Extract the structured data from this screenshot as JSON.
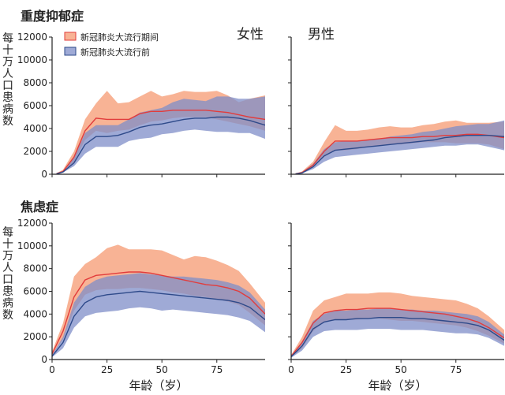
{
  "figure": {
    "row_titles": [
      "重度抑郁症",
      "焦虑症"
    ],
    "col_titles": [
      "女性",
      "男性"
    ],
    "ylabel": "每十万人口患病数",
    "xlabel": "年龄（岁）",
    "colors": {
      "during_fill": "#f7a683",
      "during_line": "#e23c3c",
      "before_fill": "#7f8dc8",
      "before_line": "#2e4a8a",
      "axis": "#222222"
    }
  },
  "chart_data": [
    {
      "type": "area",
      "title": "重度抑郁症 女性",
      "row_title": "重度抑郁症",
      "col_title": "女性",
      "xlabel": "年龄（岁）",
      "ylabel": "每十万人口患病数",
      "xlim": [
        0,
        97
      ],
      "ylim": [
        0,
        12000
      ],
      "xticks": [
        0,
        25,
        50,
        75
      ],
      "yticks": [
        0,
        2000,
        4000,
        6000,
        8000,
        10000,
        12000
      ],
      "legend": {
        "position": "top-left",
        "entries": [
          "新冠肺炎大流行期间",
          "新冠肺炎大流行前"
        ]
      },
      "x": [
        2,
        5,
        10,
        15,
        20,
        25,
        30,
        35,
        40,
        45,
        50,
        55,
        60,
        65,
        70,
        75,
        80,
        85,
        90,
        97
      ],
      "series": [
        {
          "name": "新冠肺炎大流行期间",
          "values": [
            50,
            250,
            1500,
            3800,
            4900,
            4800,
            4800,
            4800,
            5300,
            5500,
            5500,
            5600,
            5600,
            5600,
            5600,
            5500,
            5400,
            5200,
            5000,
            4800
          ],
          "lower": [
            30,
            200,
            1100,
            3000,
            3800,
            3600,
            3800,
            3900,
            4300,
            4600,
            4700,
            4900,
            5000,
            5000,
            5000,
            4800,
            4600,
            4400,
            4200,
            3800
          ],
          "upper": [
            80,
            400,
            2000,
            4800,
            6200,
            7300,
            6200,
            6300,
            6800,
            7300,
            6800,
            7000,
            7300,
            7200,
            7200,
            7300,
            6900,
            6300,
            6600,
            6900
          ]
        },
        {
          "name": "新冠肺炎大流行前",
          "values": [
            30,
            200,
            1000,
            2600,
            3300,
            3300,
            3400,
            3700,
            4100,
            4300,
            4400,
            4600,
            4800,
            4900,
            4900,
            5000,
            5000,
            4900,
            4700,
            4300
          ],
          "lower": [
            20,
            150,
            700,
            1800,
            2400,
            2400,
            2400,
            2900,
            3100,
            3200,
            3500,
            3600,
            3800,
            3900,
            3800,
            3700,
            3700,
            3600,
            3600,
            3100
          ],
          "upper": [
            50,
            300,
            1500,
            3600,
            4300,
            4300,
            4300,
            4800,
            5400,
            5600,
            5800,
            6300,
            6600,
            6500,
            6400,
            6800,
            6800,
            6600,
            6600,
            6800
          ]
        }
      ]
    },
    {
      "type": "area",
      "title": "重度抑郁症 男性",
      "row_title": "重度抑郁症",
      "col_title": "男性",
      "xlabel": "年龄（岁）",
      "ylabel": "每十万人口患病数",
      "xlim": [
        0,
        97
      ],
      "ylim": [
        0,
        12000
      ],
      "xticks": [
        0,
        25,
        50,
        75
      ],
      "yticks": [
        0,
        2000,
        4000,
        6000,
        8000,
        10000,
        12000
      ],
      "x": [
        2,
        5,
        10,
        15,
        20,
        25,
        30,
        35,
        40,
        45,
        50,
        55,
        60,
        65,
        70,
        75,
        80,
        85,
        90,
        97
      ],
      "series": [
        {
          "name": "新冠肺炎大流行期间",
          "values": [
            40,
            150,
            800,
            2000,
            2900,
            2900,
            2900,
            3000,
            3100,
            3200,
            3200,
            3200,
            3300,
            3300,
            3400,
            3400,
            3500,
            3500,
            3400,
            3200
          ],
          "lower": [
            20,
            100,
            600,
            1500,
            2100,
            2100,
            2200,
            2400,
            2500,
            2600,
            2600,
            2700,
            2800,
            2800,
            2800,
            2700,
            2700,
            2700,
            2600,
            2200
          ],
          "upper": [
            60,
            250,
            1100,
            2800,
            4300,
            3800,
            3800,
            3900,
            4100,
            4200,
            4100,
            4100,
            4300,
            4400,
            4600,
            4700,
            4500,
            4500,
            4500,
            4600
          ]
        },
        {
          "name": "新冠肺炎大流行前",
          "values": [
            30,
            120,
            650,
            1600,
            2100,
            2200,
            2300,
            2400,
            2500,
            2600,
            2700,
            2800,
            2900,
            3000,
            3200,
            3300,
            3400,
            3400,
            3400,
            3300
          ],
          "lower": [
            15,
            80,
            450,
            1100,
            1500,
            1600,
            1700,
            1800,
            1900,
            2000,
            2100,
            2200,
            2300,
            2400,
            2500,
            2500,
            2600,
            2600,
            2400,
            2100
          ],
          "upper": [
            50,
            200,
            900,
            2200,
            2800,
            2900,
            2900,
            3000,
            3100,
            3300,
            3400,
            3500,
            3700,
            3800,
            4000,
            4200,
            4300,
            4400,
            4400,
            4700
          ]
        }
      ]
    },
    {
      "type": "area",
      "title": "焦虑症 女性",
      "row_title": "焦虑症",
      "col_title": "女性",
      "xlabel": "年龄（岁）",
      "ylabel": "每十万人口患病数",
      "xlim": [
        0,
        97
      ],
      "ylim": [
        0,
        12000
      ],
      "xticks": [
        0,
        25,
        50,
        75
      ],
      "yticks": [
        0,
        2000,
        4000,
        6000,
        8000,
        10000,
        12000
      ],
      "x": [
        0,
        5,
        10,
        15,
        20,
        25,
        30,
        35,
        40,
        45,
        50,
        55,
        60,
        65,
        70,
        75,
        80,
        85,
        90,
        97
      ],
      "series": [
        {
          "name": "新冠肺炎大流行期间",
          "values": [
            500,
            2500,
            5500,
            7000,
            7400,
            7500,
            7600,
            7700,
            7700,
            7600,
            7400,
            7200,
            7000,
            6800,
            6600,
            6500,
            6300,
            6000,
            5400,
            4000
          ],
          "lower": [
            400,
            1800,
            4300,
            5700,
            6100,
            6200,
            6200,
            6300,
            6300,
            6200,
            6100,
            5900,
            5800,
            5600,
            5500,
            5300,
            5100,
            4800,
            4100,
            3000
          ],
          "upper": [
            700,
            3200,
            7300,
            8400,
            9000,
            9800,
            10100,
            9700,
            9700,
            9700,
            9600,
            9200,
            8800,
            9100,
            9000,
            8700,
            8300,
            7800,
            6700,
            5000
          ]
        },
        {
          "name": "新冠肺炎大流行前",
          "values": [
            300,
            1500,
            3800,
            5000,
            5500,
            5700,
            5800,
            5900,
            6000,
            5900,
            5800,
            5700,
            5600,
            5500,
            5400,
            5300,
            5200,
            5000,
            4600,
            3500
          ],
          "lower": [
            200,
            1000,
            2800,
            3800,
            4100,
            4200,
            4300,
            4500,
            4600,
            4500,
            4300,
            4400,
            4300,
            4200,
            4100,
            4000,
            3900,
            3700,
            3400,
            2400
          ],
          "upper": [
            400,
            2000,
            5000,
            6400,
            7000,
            7300,
            7400,
            7500,
            7600,
            7500,
            7400,
            7300,
            7300,
            7200,
            7100,
            7000,
            6800,
            6500,
            5900,
            4400
          ]
        }
      ]
    },
    {
      "type": "area",
      "title": "焦虑症 男性",
      "row_title": "焦虑症",
      "col_title": "男性",
      "xlabel": "年龄（岁）",
      "ylabel": "每十万人口患病数",
      "xlim": [
        0,
        97
      ],
      "ylim": [
        0,
        12000
      ],
      "xticks": [
        0,
        25,
        50,
        75
      ],
      "yticks": [
        0,
        2000,
        4000,
        6000,
        8000,
        10000,
        12000
      ],
      "x": [
        0,
        5,
        10,
        15,
        20,
        25,
        30,
        35,
        40,
        45,
        50,
        55,
        60,
        65,
        70,
        75,
        80,
        85,
        90,
        97
      ],
      "series": [
        {
          "name": "新冠肺炎大流行期间",
          "values": [
            300,
            1500,
            3200,
            4100,
            4300,
            4400,
            4400,
            4500,
            4500,
            4500,
            4400,
            4300,
            4200,
            4100,
            4000,
            3800,
            3600,
            3300,
            2800,
            1900
          ],
          "lower": [
            200,
            1000,
            2500,
            3300,
            3500,
            3500,
            3500,
            3600,
            3600,
            3500,
            3400,
            3400,
            3300,
            3200,
            3100,
            3000,
            2800,
            2500,
            2100,
            1400
          ],
          "upper": [
            400,
            2000,
            4300,
            5200,
            5500,
            5800,
            5800,
            5800,
            5900,
            5900,
            5800,
            5600,
            5500,
            5400,
            5300,
            5200,
            4900,
            4500,
            3800,
            2600
          ]
        },
        {
          "name": "新冠肺炎大流行前",
          "values": [
            250,
            1200,
            2700,
            3300,
            3500,
            3500,
            3600,
            3600,
            3700,
            3700,
            3700,
            3600,
            3600,
            3500,
            3400,
            3300,
            3200,
            3000,
            2600,
            1700
          ],
          "lower": [
            150,
            800,
            2000,
            2500,
            2600,
            2600,
            2600,
            2700,
            2700,
            2700,
            2600,
            2600,
            2600,
            2500,
            2400,
            2300,
            2300,
            2200,
            1900,
            1200
          ],
          "upper": [
            350,
            1600,
            3400,
            4000,
            4300,
            4300,
            4400,
            4400,
            4500,
            4500,
            4400,
            4400,
            4300,
            4300,
            4200,
            4100,
            4000,
            3800,
            3300,
            2200
          ]
        }
      ]
    }
  ]
}
